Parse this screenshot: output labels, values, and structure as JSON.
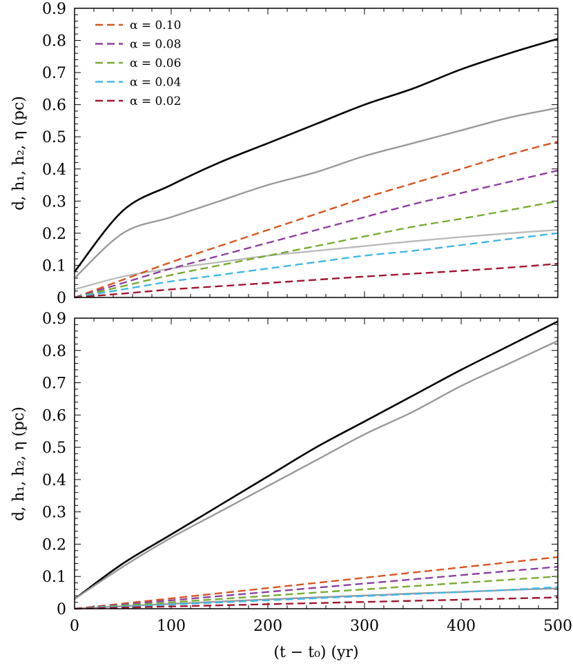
{
  "chart_data": [
    {
      "type": "line",
      "panel": "top",
      "ylabel": "d, h₁, h₂, η (pc)",
      "xlabel": "",
      "xlim": [
        0,
        500
      ],
      "ylim": [
        0,
        0.9
      ],
      "x_ticks": [
        0,
        100,
        200,
        300,
        400,
        500
      ],
      "x_tick_labels_shown": false,
      "y_ticks": [
        "0",
        "0.1",
        "0.2",
        "0.3",
        "0.4",
        "0.5",
        "0.6",
        "0.7",
        "0.8",
        "0.9"
      ],
      "legend": {
        "placement": "top-left",
        "entries": [
          "α = 0.10",
          "α = 0.08",
          "α = 0.06",
          "α = 0.04",
          "α = 0.02"
        ]
      },
      "x": [
        0,
        50,
        100,
        150,
        200,
        250,
        300,
        350,
        400,
        450,
        500
      ],
      "series": [
        {
          "color": "#000000",
          "style": "solid",
          "values": [
            0.08,
            0.27,
            0.35,
            0.42,
            0.48,
            0.54,
            0.6,
            0.65,
            0.71,
            0.76,
            0.805
          ]
        },
        {
          "color": "#999999",
          "style": "solid",
          "values": [
            0.06,
            0.2,
            0.25,
            0.3,
            0.35,
            0.39,
            0.44,
            0.48,
            0.52,
            0.56,
            0.59
          ]
        },
        {
          "color": "#bbbbbb",
          "style": "solid",
          "values": [
            0.025,
            0.065,
            0.09,
            0.11,
            0.13,
            0.145,
            0.16,
            0.175,
            0.188,
            0.2,
            0.21
          ]
        },
        {
          "name": "α = 0.10",
          "color": "#d9541e",
          "style": "dashed",
          "values": [
            0,
            0.055,
            0.11,
            0.16,
            0.21,
            0.26,
            0.31,
            0.355,
            0.4,
            0.445,
            0.485
          ]
        },
        {
          "name": "α = 0.08",
          "color": "#8e3ea0",
          "style": "dashed",
          "values": [
            0,
            0.045,
            0.09,
            0.13,
            0.17,
            0.21,
            0.25,
            0.29,
            0.325,
            0.36,
            0.395
          ]
        },
        {
          "name": "α = 0.06",
          "color": "#77ac30",
          "style": "dashed",
          "values": [
            0,
            0.035,
            0.07,
            0.1,
            0.13,
            0.16,
            0.19,
            0.22,
            0.245,
            0.272,
            0.3
          ]
        },
        {
          "name": "α = 0.04",
          "color": "#3fb7e8",
          "style": "dashed",
          "values": [
            0,
            0.025,
            0.05,
            0.07,
            0.09,
            0.11,
            0.13,
            0.145,
            0.163,
            0.182,
            0.2
          ]
        },
        {
          "name": "α = 0.02",
          "color": "#a2142f",
          "style": "dashed",
          "values": [
            0,
            0.012,
            0.025,
            0.035,
            0.045,
            0.055,
            0.065,
            0.074,
            0.083,
            0.093,
            0.105
          ]
        }
      ]
    },
    {
      "type": "line",
      "panel": "bottom",
      "ylabel": "d, h₁, h₂, η (pc)",
      "xlabel": "(t − t₀) (yr)",
      "xlim": [
        0,
        500
      ],
      "ylim": [
        0,
        0.9
      ],
      "x_ticks": [
        "0",
        "100",
        "200",
        "300",
        "400",
        "500"
      ],
      "y_ticks": [
        "0",
        "0.1",
        "0.2",
        "0.3",
        "0.4",
        "0.5",
        "0.6",
        "0.7",
        "0.8",
        "0.9"
      ],
      "x": [
        0,
        50,
        100,
        150,
        200,
        250,
        300,
        350,
        400,
        450,
        500
      ],
      "series": [
        {
          "color": "#000000",
          "style": "solid",
          "values": [
            0.03,
            0.14,
            0.23,
            0.32,
            0.41,
            0.5,
            0.58,
            0.66,
            0.74,
            0.815,
            0.89
          ]
        },
        {
          "color": "#999999",
          "style": "solid",
          "values": [
            0.03,
            0.13,
            0.22,
            0.3,
            0.38,
            0.46,
            0.54,
            0.61,
            0.69,
            0.76,
            0.83
          ]
        },
        {
          "color": "#999999",
          "style": "solid",
          "values": [
            0.0,
            0.008,
            0.015,
            0.022,
            0.029,
            0.035,
            0.041,
            0.047,
            0.052,
            0.058,
            0.063
          ]
        },
        {
          "name": "α = 0.10",
          "color": "#d9541e",
          "style": "dashed",
          "values": [
            0,
            0.016,
            0.032,
            0.048,
            0.064,
            0.08,
            0.096,
            0.112,
            0.128,
            0.144,
            0.16
          ]
        },
        {
          "name": "α = 0.08",
          "color": "#8e3ea0",
          "style": "dashed",
          "values": [
            0,
            0.013,
            0.026,
            0.039,
            0.052,
            0.065,
            0.078,
            0.091,
            0.104,
            0.117,
            0.13
          ]
        },
        {
          "name": "α = 0.06",
          "color": "#77ac30",
          "style": "dashed",
          "values": [
            0,
            0.01,
            0.02,
            0.03,
            0.04,
            0.05,
            0.06,
            0.07,
            0.08,
            0.09,
            0.1
          ]
        },
        {
          "name": "α = 0.04",
          "color": "#3fb7e8",
          "style": "dashed",
          "values": [
            0,
            0.0065,
            0.013,
            0.0195,
            0.026,
            0.0325,
            0.039,
            0.0455,
            0.052,
            0.0585,
            0.067
          ]
        },
        {
          "name": "α = 0.02",
          "color": "#a2142f",
          "style": "dashed",
          "values": [
            0,
            0.0035,
            0.007,
            0.0105,
            0.014,
            0.0175,
            0.021,
            0.0245,
            0.028,
            0.0315,
            0.035
          ]
        }
      ]
    }
  ]
}
